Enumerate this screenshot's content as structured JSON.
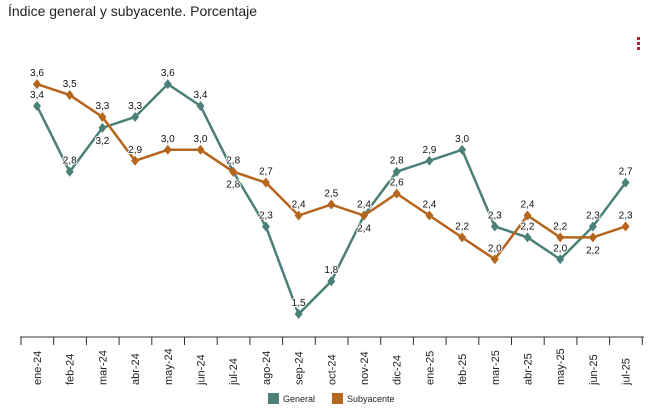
{
  "header": {
    "title": "Índice general y subyacente. Porcentaje"
  },
  "chart_data": {
    "type": "line",
    "title": "Índice general y subyacente. Porcentaje",
    "categories": [
      "ene-24",
      "feb-24",
      "mar-24",
      "abr-24",
      "may-24",
      "jun-24",
      "jul-24",
      "ago-24",
      "sep-24",
      "oct-24",
      "nov-24",
      "dic-24",
      "ene-25",
      "feb-25",
      "mar-25",
      "abr-25",
      "may-25",
      "jun-25",
      "jul-25"
    ],
    "series": [
      {
        "name": "General",
        "color": "#4b8078",
        "values": [
          3.4,
          2.8,
          3.2,
          3.3,
          3.6,
          3.4,
          2.8,
          2.3,
          1.5,
          1.8,
          2.4,
          2.8,
          2.9,
          3.0,
          2.3,
          2.2,
          2.0,
          2.3,
          2.7
        ]
      },
      {
        "name": "Subyacente",
        "color": "#b5651d",
        "values": [
          3.6,
          3.5,
          3.3,
          2.9,
          3.0,
          3.0,
          2.8,
          2.7,
          2.4,
          2.5,
          2.4,
          2.6,
          2.4,
          2.2,
          2.0,
          2.4,
          2.2,
          2.2,
          2.3
        ]
      }
    ],
    "legend": "bottom",
    "grid": false,
    "xlabel": "",
    "ylabel": ""
  }
}
